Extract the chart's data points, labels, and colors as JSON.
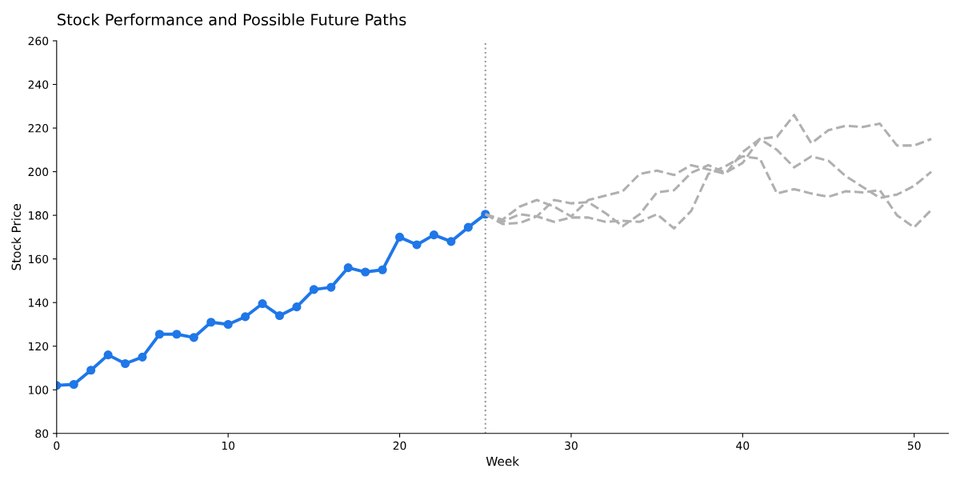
{
  "chart_data": {
    "type": "line",
    "title": "Stock Performance and Possible Future Paths",
    "xlabel": "Week",
    "ylabel": "Stock Price",
    "xlim": [
      0,
      52
    ],
    "xticks": [
      0,
      10,
      20,
      30,
      40,
      50
    ],
    "ylim": [
      80,
      260
    ],
    "yticks": [
      80,
      100,
      120,
      140,
      160,
      180,
      200,
      220,
      240,
      260
    ],
    "grid": false,
    "series": [
      {
        "color": "#1f77e8",
        "marker": "circle",
        "line_style": "solid",
        "x": [
          0,
          1,
          2,
          3,
          4,
          5,
          6,
          7,
          8,
          9,
          10,
          11,
          12,
          13,
          14,
          15,
          16,
          17,
          18,
          19,
          20,
          21,
          22,
          23,
          24,
          25
        ],
        "values": [
          102,
          102.5,
          109,
          116,
          112,
          115,
          125.5,
          125.5,
          124,
          131,
          130,
          133.5,
          139.5,
          134,
          138,
          146,
          147,
          156,
          154,
          155,
          170,
          166.5,
          171,
          168,
          174.5,
          180.5
        ]
      },
      {
        "color": "#b0b0b0",
        "marker": "none",
        "line_style": "dashed",
        "x": [
          25,
          26,
          27,
          28,
          29,
          30,
          31,
          32,
          33,
          34,
          35,
          36,
          37,
          38,
          39,
          40,
          41,
          42,
          43,
          44,
          45,
          46,
          47,
          48,
          49,
          50,
          51
        ],
        "values": [
          180.5,
          176,
          176.5,
          179.5,
          187,
          185.5,
          186,
          181,
          175,
          180.5,
          190.5,
          191.5,
          199.5,
          203,
          199.5,
          204,
          215,
          216,
          226,
          213,
          219,
          221,
          220.5,
          222,
          212,
          212,
          215
        ]
      },
      {
        "color": "#b0b0b0",
        "marker": "none",
        "line_style": "dashed",
        "x": [
          25,
          26,
          27,
          28,
          29,
          30,
          31,
          32,
          33,
          34,
          35,
          36,
          37,
          38,
          39,
          40,
          41,
          42,
          43,
          44,
          45,
          46,
          47,
          48,
          49,
          50,
          51
        ],
        "values": [
          180.5,
          178,
          184,
          187,
          184,
          179.5,
          187,
          189,
          191,
          199,
          200.5,
          198.5,
          203,
          201,
          199,
          209,
          215,
          210,
          202,
          207,
          205,
          198,
          193,
          188,
          189.5,
          193.5,
          200
        ]
      },
      {
        "color": "#b0b0b0",
        "marker": "none",
        "line_style": "dashed",
        "x": [
          25,
          26,
          27,
          28,
          29,
          30,
          31,
          32,
          33,
          34,
          35,
          36,
          37,
          38,
          39,
          40,
          41,
          42,
          43,
          44,
          45,
          46,
          47,
          48,
          49,
          50,
          51
        ],
        "values": [
          180.5,
          177,
          180.5,
          179.5,
          177,
          179,
          179,
          177,
          177.5,
          177,
          180.5,
          174,
          182,
          199,
          202.5,
          207,
          206,
          190,
          192,
          190,
          188.5,
          191,
          190.5,
          191.5,
          180,
          174.5,
          182.5
        ]
      }
    ],
    "ref_lines": [
      {
        "axis": "x",
        "value": 25,
        "color": "#999999",
        "line_style": "dotted"
      }
    ]
  }
}
